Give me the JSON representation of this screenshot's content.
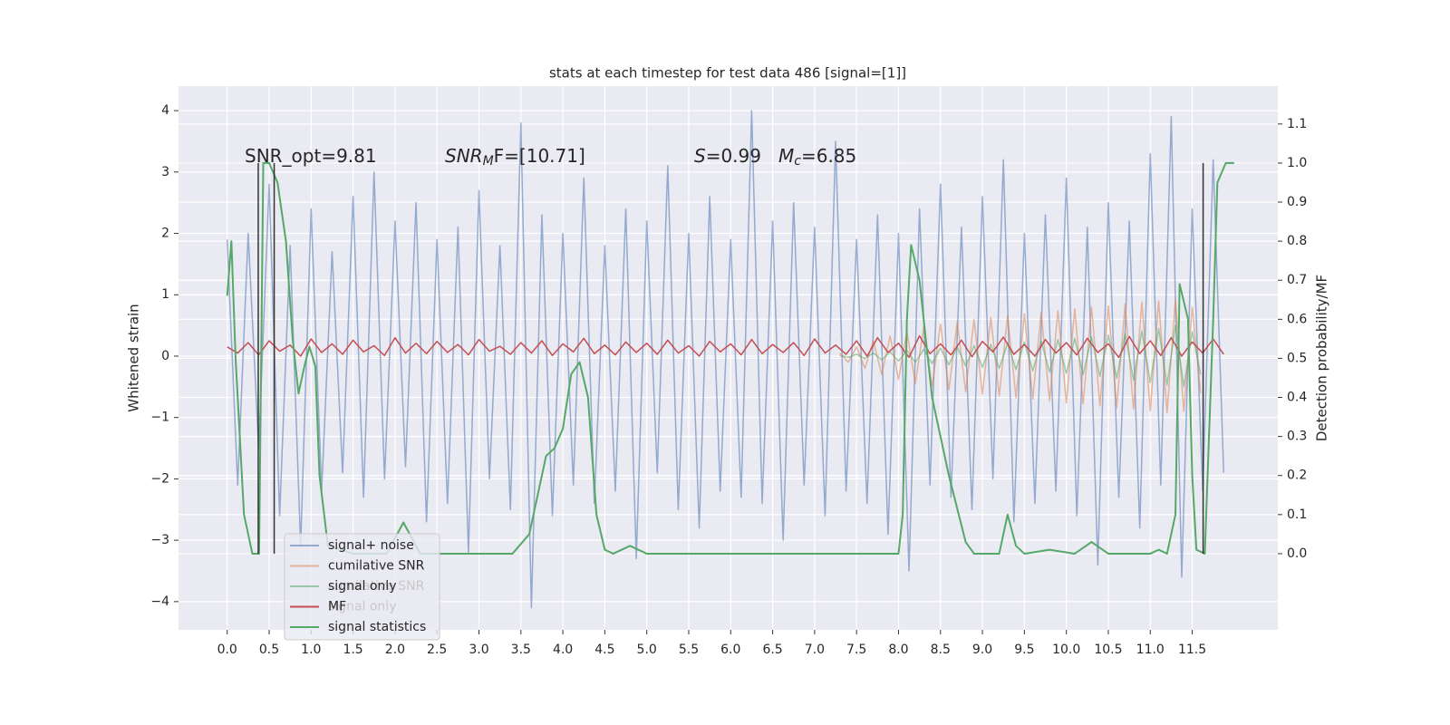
{
  "chart_data": {
    "type": "line",
    "title": "stats at each timestep for test data 486 [signal=[1]]",
    "ylabel": "Whitened strain",
    "y2label": "Detection probability/MF",
    "xlim": [
      -0.58,
      12.52
    ],
    "ylim": [
      -4.46,
      4.4
    ],
    "y2lim": [
      -0.195,
      1.197
    ],
    "grid": true,
    "xticks": [
      {
        "value": 0,
        "label": "0.0"
      },
      0.5,
      {
        "value": 1,
        "label": "1.0"
      },
      1.5,
      {
        "value": 2,
        "label": "2.0"
      },
      2.5,
      {
        "value": 3,
        "label": "3.0"
      },
      3.5,
      {
        "value": 4,
        "label": "4.0"
      },
      4.5,
      {
        "value": 5,
        "label": "5.0"
      },
      5.5,
      {
        "value": 6,
        "label": "6.0"
      },
      6.5,
      {
        "value": 7,
        "label": "7.0"
      },
      7.5,
      {
        "value": 8,
        "label": "8.0"
      },
      8.5,
      {
        "value": 9,
        "label": "9.0"
      },
      9.5,
      {
        "value": 10,
        "label": "10.0"
      },
      10.5,
      {
        "value": 11,
        "label": "11.0"
      },
      11.5
    ],
    "yticks": [
      {
        "value": -4,
        "label": "−4"
      },
      {
        "value": -3,
        "label": "−3"
      },
      {
        "value": -2,
        "label": "−2"
      },
      {
        "value": -1,
        "label": "−1"
      },
      0,
      1,
      2,
      3,
      4
    ],
    "y2ticks": [
      {
        "value": 0,
        "label": "0.0"
      },
      0.1,
      0.2,
      0.3,
      0.4,
      0.5,
      0.6,
      0.7,
      0.8,
      0.9,
      {
        "value": 1,
        "label": "1.0"
      },
      1.1
    ],
    "x": [
      0,
      0.125,
      0.25,
      0.375,
      0.5,
      0.625,
      0.75,
      0.875,
      1,
      1.125,
      1.25,
      1.375,
      1.5,
      1.625,
      1.75,
      1.875,
      2,
      2.125,
      2.25,
      2.375,
      2.5,
      2.625,
      2.75,
      2.875,
      3,
      3.125,
      3.25,
      3.375,
      3.5,
      3.625,
      3.75,
      3.875,
      4,
      4.125,
      4.25,
      4.375,
      4.5,
      4.625,
      4.75,
      4.875,
      5,
      5.125,
      5.25,
      5.375,
      5.5,
      5.625,
      5.75,
      5.875,
      6,
      6.125,
      6.25,
      6.375,
      6.5,
      6.625,
      6.75,
      6.875,
      7,
      7.125,
      7.25,
      7.375,
      7.5,
      7.625,
      7.75,
      7.875,
      8,
      8.125,
      8.25,
      8.375,
      8.5,
      8.625,
      8.75,
      8.875,
      9,
      9.125,
      9.25,
      9.375,
      9.5,
      9.625,
      9.75,
      9.875,
      10,
      10.125,
      10.25,
      10.375,
      10.5,
      10.625,
      10.75,
      10.875,
      11,
      11.125,
      11.25,
      11.375,
      11.5,
      11.625,
      11.75,
      11.875
    ],
    "series": [
      {
        "name": "signal+ noise",
        "color": "#4c72b0",
        "alpha": 0.55,
        "values": [
          1.9,
          -2.1,
          2.0,
          -1.5,
          2.8,
          -2.6,
          1.8,
          -3.1,
          2.4,
          -2.2,
          1.7,
          -1.9,
          2.6,
          -2.3,
          3.0,
          -2.0,
          2.2,
          -1.8,
          2.5,
          -2.7,
          1.9,
          -2.4,
          2.1,
          -3.2,
          2.7,
          -2.0,
          1.8,
          -2.5,
          3.8,
          -4.1,
          2.3,
          -2.6,
          2.0,
          -2.1,
          2.9,
          -2.4,
          1.8,
          -2.2,
          2.4,
          -3.3,
          2.2,
          -1.9,
          3.1,
          -2.5,
          2.0,
          -2.8,
          2.6,
          -2.2,
          1.9,
          -2.3,
          4.0,
          -2.4,
          2.2,
          -3.0,
          2.5,
          -2.1,
          2.1,
          -2.6,
          3.5,
          -2.2,
          1.9,
          -2.4,
          2.3,
          -2.9,
          2.0,
          -3.5,
          2.4,
          -2.1,
          2.8,
          -2.3,
          2.1,
          -2.5,
          2.6,
          -2.0,
          3.2,
          -2.7,
          2.0,
          -2.4,
          2.3,
          -2.2,
          2.9,
          -2.6,
          2.1,
          -3.4,
          2.5,
          -2.3,
          2.2,
          -2.8,
          3.3,
          -2.1,
          3.9,
          -3.6,
          2.4,
          -2.2,
          3.2,
          -1.9
        ]
      },
      {
        "name": "cumilative SNR",
        "color": "#dd8452",
        "alpha": 0.55,
        "x": [
          7.3,
          7.4,
          7.5,
          7.6,
          7.7,
          7.8,
          7.9,
          8.0,
          8.1,
          8.2,
          8.3,
          8.4,
          8.5,
          8.6,
          8.7,
          8.8,
          8.9,
          9.0,
          9.1,
          9.2,
          9.3,
          9.4,
          9.5,
          9.6,
          9.7,
          9.8,
          9.9,
          10.0,
          10.1,
          10.2,
          10.3,
          10.4,
          10.5,
          10.6,
          10.7,
          10.8,
          10.9,
          11.0,
          11.1,
          11.2,
          11.3,
          11.4,
          11.5,
          11.6
        ],
        "values": [
          0.05,
          -0.1,
          0.15,
          -0.2,
          0.25,
          -0.3,
          0.33,
          -0.38,
          0.4,
          -0.45,
          0.47,
          -0.5,
          0.52,
          -0.55,
          0.56,
          -0.58,
          0.6,
          -0.62,
          0.63,
          -0.65,
          0.66,
          -0.68,
          0.69,
          -0.7,
          0.72,
          -0.73,
          0.74,
          -0.76,
          0.77,
          -0.78,
          0.8,
          -0.81,
          0.82,
          -0.84,
          0.85,
          -0.86,
          0.88,
          -0.89,
          0.9,
          -0.92,
          0.92,
          -0.9,
          0.8,
          -0.6
        ]
      },
      {
        "name": "signal only",
        "color": "#55a868",
        "alpha": 0.55,
        "x": [
          7.3,
          7.4,
          7.5,
          7.6,
          7.7,
          7.8,
          7.9,
          8.0,
          8.1,
          8.2,
          8.3,
          8.4,
          8.5,
          8.6,
          8.7,
          8.8,
          8.9,
          9.0,
          9.1,
          9.2,
          9.3,
          9.4,
          9.5,
          9.6,
          9.7,
          9.8,
          9.9,
          10.0,
          10.1,
          10.2,
          10.3,
          10.4,
          10.5,
          10.6,
          10.7,
          10.8,
          10.9,
          11.0,
          11.1,
          11.2,
          11.3,
          11.4,
          11.5,
          11.6
        ],
        "values": [
          0.01,
          -0.02,
          0.03,
          -0.04,
          0.05,
          -0.06,
          0.07,
          -0.08,
          0.09,
          -0.1,
          0.11,
          -0.12,
          0.13,
          -0.14,
          0.15,
          -0.16,
          0.17,
          -0.18,
          0.19,
          -0.2,
          0.21,
          -0.22,
          0.23,
          -0.24,
          0.25,
          -0.26,
          0.27,
          -0.28,
          0.29,
          -0.3,
          0.31,
          -0.33,
          0.34,
          -0.36,
          0.37,
          -0.39,
          0.41,
          -0.43,
          0.45,
          -0.47,
          0.5,
          -0.5,
          0.4,
          -0.3
        ]
      },
      {
        "name": "MF",
        "color": "#c44e52",
        "alpha": 1,
        "values": [
          0.15,
          0.05,
          0.22,
          0.02,
          0.25,
          0.08,
          0.18,
          0.0,
          0.28,
          0.06,
          0.2,
          0.03,
          0.26,
          0.07,
          0.17,
          0.01,
          0.3,
          0.05,
          0.21,
          0.04,
          0.24,
          0.06,
          0.19,
          0.02,
          0.27,
          0.08,
          0.16,
          0.03,
          0.22,
          0.05,
          0.25,
          0.01,
          0.2,
          0.07,
          0.29,
          0.04,
          0.18,
          0.02,
          0.23,
          0.06,
          0.21,
          0.03,
          0.26,
          0.05,
          0.17,
          0.0,
          0.24,
          0.07,
          0.2,
          0.02,
          0.27,
          0.04,
          0.19,
          0.06,
          0.22,
          0.01,
          0.28,
          0.05,
          0.18,
          0.03,
          0.25,
          0.0,
          0.3,
          0.06,
          0.21,
          -0.02,
          0.33,
          0.04,
          0.2,
          0.02,
          0.26,
          -0.01,
          0.24,
          0.07,
          0.31,
          0.03,
          0.19,
          0.0,
          0.27,
          0.05,
          0.22,
          0.02,
          0.29,
          0.06,
          0.2,
          -0.02,
          0.32,
          0.04,
          0.25,
          0.01,
          0.3,
          0.0,
          0.23,
          0.05,
          0.28,
          0.03
        ]
      },
      {
        "name": "signal statistics",
        "color": "#55a868",
        "alpha": 1,
        "axis": "y2",
        "x": [
          0.0,
          0.05,
          0.1,
          0.2,
          0.3,
          0.38,
          0.43,
          0.5,
          0.6,
          0.7,
          0.78,
          0.85,
          0.92,
          0.98,
          1.05,
          1.1,
          1.2,
          1.5,
          1.9,
          2.1,
          2.3,
          2.8,
          3.4,
          3.6,
          3.8,
          3.9,
          4.0,
          4.1,
          4.2,
          4.3,
          4.4,
          4.5,
          4.6,
          4.8,
          5.0,
          6.0,
          7.0,
          8.0,
          8.05,
          8.1,
          8.15,
          8.25,
          8.4,
          8.6,
          8.8,
          8.9,
          9.2,
          9.3,
          9.4,
          9.5,
          9.8,
          10.1,
          10.3,
          10.5,
          11.0,
          11.1,
          11.2,
          11.3,
          11.35,
          11.45,
          11.5,
          11.55,
          11.65,
          11.75,
          11.8,
          11.9,
          12.0
        ],
        "values": [
          0.66,
          0.8,
          0.5,
          0.1,
          0.0,
          0.0,
          1.0,
          1.0,
          0.95,
          0.8,
          0.55,
          0.41,
          0.48,
          0.53,
          0.48,
          0.2,
          0.02,
          0.0,
          0.0,
          0.08,
          0.0,
          0.0,
          0.0,
          0.05,
          0.25,
          0.27,
          0.32,
          0.46,
          0.49,
          0.4,
          0.1,
          0.01,
          0.0,
          0.02,
          0.0,
          0.0,
          0.0,
          0.0,
          0.1,
          0.6,
          0.79,
          0.7,
          0.4,
          0.2,
          0.03,
          0.0,
          0.0,
          0.1,
          0.02,
          0.0,
          0.01,
          0.0,
          0.03,
          0.0,
          0.0,
          0.01,
          0.0,
          0.1,
          0.69,
          0.6,
          0.2,
          0.01,
          0.0,
          0.6,
          0.95,
          1.0,
          1.0
        ]
      }
    ],
    "vlines": {
      "x": [
        0.37,
        0.56,
        11.63
      ],
      "y2range": [
        0,
        1
      ],
      "color": "#333333"
    },
    "annotations": [
      [
        {
          "text": "SNR_opt=9.81",
          "style": "normal"
        }
      ],
      [
        {
          "text": "SNR",
          "style": "italic"
        },
        {
          "text": "M",
          "style": "italic-sub"
        },
        {
          "text": "F=[10.71]",
          "style": "normal"
        }
      ],
      [
        {
          "text": "S",
          "style": "italic"
        },
        {
          "text": "=0.99",
          "style": "normal"
        }
      ],
      [
        {
          "text": "M",
          "style": "italic"
        },
        {
          "text": "c",
          "style": "italic-sub"
        },
        {
          "text": "=6.85",
          "style": "normal"
        }
      ]
    ],
    "ghost_legend": [
      "cumilative SNR",
      "signal only"
    ]
  }
}
